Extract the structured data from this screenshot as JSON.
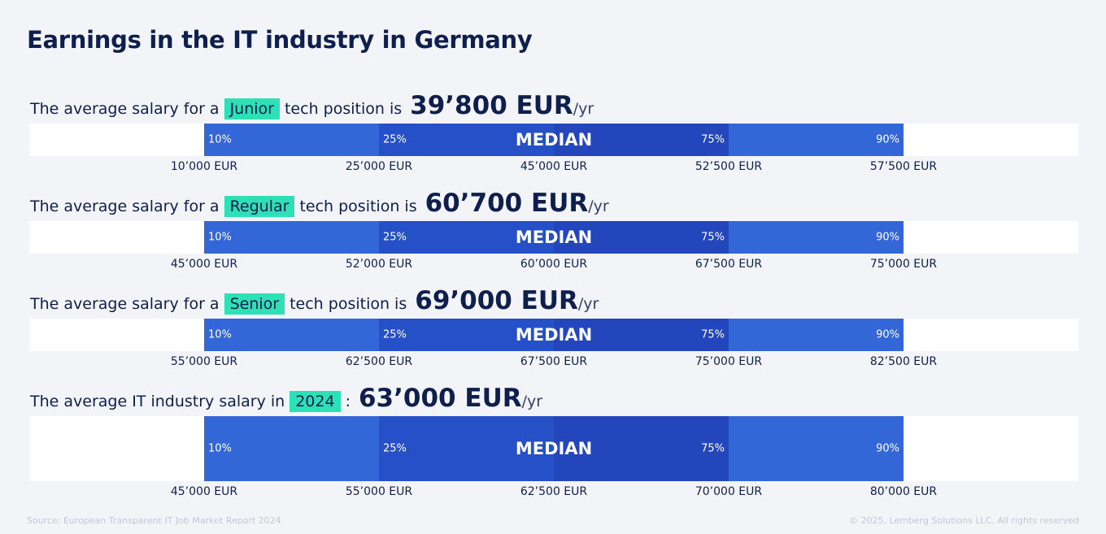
{
  "title": "Earnings in the IT industry in Germany",
  "sections": [
    {
      "prefix": "The average salary for a",
      "highlight": "Junior",
      "suffix": "tech position is",
      "amount": "39’800 EUR",
      "unit": "/yr",
      "band_labels": [
        "10%",
        "25%",
        "MEDIAN",
        "75%",
        "90%"
      ],
      "values": [
        "10’000 EUR",
        "25’000 EUR",
        "45’000 EUR",
        "52’500 EUR",
        "57’500 EUR"
      ]
    },
    {
      "prefix": "The average salary for a",
      "highlight": "Regular",
      "suffix": "tech position is",
      "amount": "60’700 EUR",
      "unit": "/yr",
      "band_labels": [
        "10%",
        "25%",
        "MEDIAN",
        "75%",
        "90%"
      ],
      "values": [
        "45’000 EUR",
        "52’000 EUR",
        "60’000 EUR",
        "67’500 EUR",
        "75’000 EUR"
      ]
    },
    {
      "prefix": "The average salary for a",
      "highlight": "Senior",
      "suffix": "tech position is",
      "amount": "69’000 EUR",
      "unit": "/yr",
      "band_labels": [
        "10%",
        "25%",
        "MEDIAN",
        "75%",
        "90%"
      ],
      "values": [
        "55’000 EUR",
        "62’500 EUR",
        "67’500 EUR",
        "75’000 EUR",
        "82’500 EUR"
      ]
    },
    {
      "prefix": "The average IT industry salary in",
      "highlight": "2024",
      "suffix": ":",
      "amount": "63’000 EUR",
      "unit": "/yr",
      "band_labels": [
        "10%",
        "25%",
        "MEDIAN",
        "75%",
        "90%"
      ],
      "values": [
        "45’000 EUR",
        "55’000 EUR",
        "62’500 EUR",
        "70’000 EUR",
        "80’000 EUR"
      ]
    }
  ],
  "footer": {
    "source": "Source: European Transparent IT Job Market Report 2024",
    "copyright": "© 2025, Lemberg Solutions LLC. All rights reserved"
  }
}
